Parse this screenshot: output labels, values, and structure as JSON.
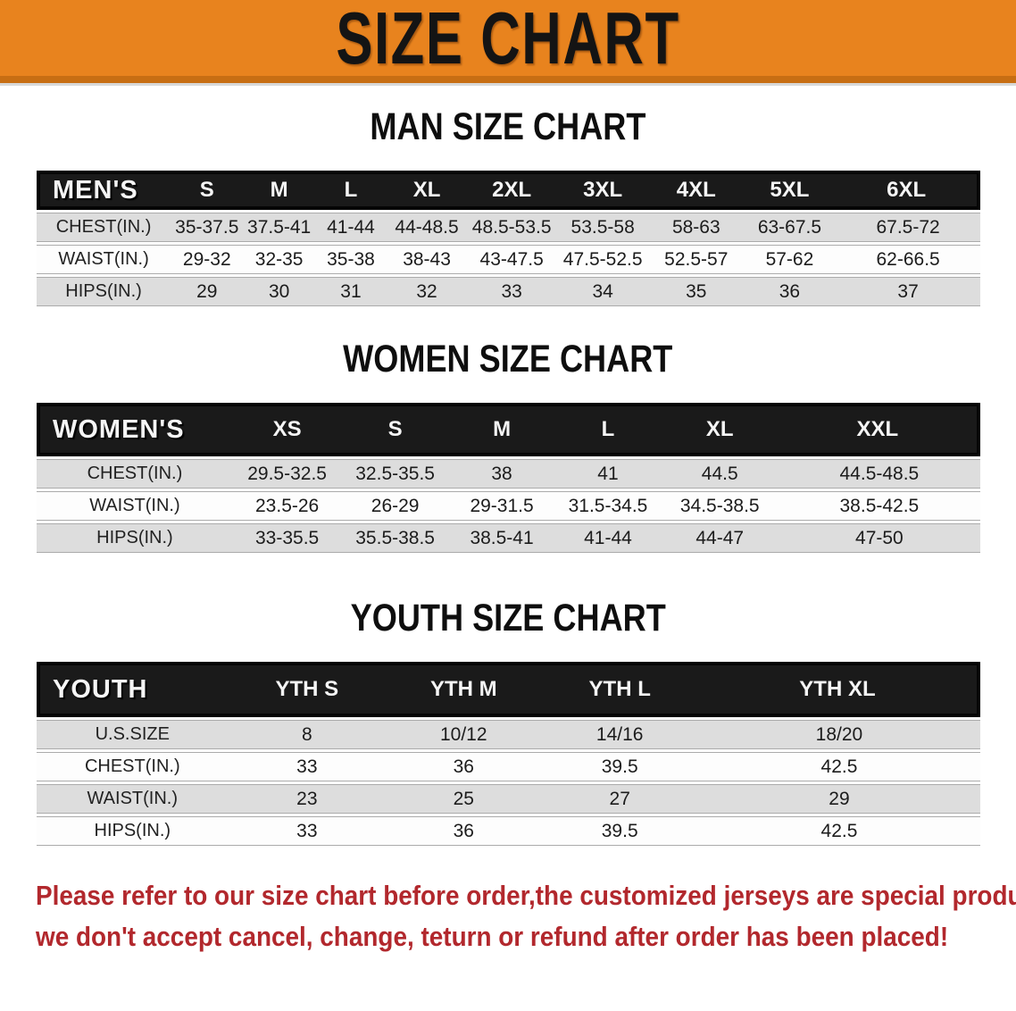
{
  "banner": {
    "title": "SIZE CHART",
    "background_color": "#E8831E"
  },
  "colors": {
    "banner_orange": "#E8831E",
    "banner_orange_dark": "#C76E13",
    "table_header_black": "#1A1A1A",
    "row_shade_gray": "#DDDDDD",
    "footer_red": "#B2282D"
  },
  "sections": [
    {
      "heading": "MAN SIZE CHART",
      "label": "MEN'S",
      "columns": [
        "S",
        "M",
        "L",
        "XL",
        "2XL",
        "3XL",
        "4XL",
        "5XL",
        "6XL"
      ],
      "rows": [
        {
          "label": "CHEST(IN.)",
          "values": [
            "35-37.5",
            "37.5-41",
            "41-44",
            "44-48.5",
            "48.5-53.5",
            "53.5-58",
            "58-63",
            "63-67.5",
            "67.5-72"
          ]
        },
        {
          "label": "WAIST(IN.)",
          "values": [
            "29-32",
            "32-35",
            "35-38",
            "38-43",
            "43-47.5",
            "47.5-52.5",
            "52.5-57",
            "57-62",
            "62-66.5"
          ]
        },
        {
          "label": "HIPS(IN.)",
          "values": [
            "29",
            "30",
            "31",
            "32",
            "33",
            "34",
            "35",
            "36",
            "37"
          ]
        }
      ]
    },
    {
      "heading": "WOMEN SIZE CHART",
      "label": "WOMEN'S",
      "columns": [
        "XS",
        "S",
        "M",
        "L",
        "XL",
        "XXL"
      ],
      "rows": [
        {
          "label": "CHEST(IN.)",
          "values": [
            "29.5-32.5",
            "32.5-35.5",
            "38",
            "41",
            "44.5",
            "44.5-48.5"
          ]
        },
        {
          "label": "WAIST(IN.)",
          "values": [
            "23.5-26",
            "26-29",
            "29-31.5",
            "31.5-34.5",
            "34.5-38.5",
            "38.5-42.5"
          ]
        },
        {
          "label": "HIPS(IN.)",
          "values": [
            "33-35.5",
            "35.5-38.5",
            "38.5-41",
            "41-44",
            "44-47",
            "47-50"
          ]
        }
      ]
    },
    {
      "heading": "YOUTH SIZE CHART",
      "label": "YOUTH",
      "columns": [
        "YTH S",
        "YTH M",
        "YTH L",
        "YTH XL"
      ],
      "rows": [
        {
          "label": "U.S.SIZE",
          "values": [
            "8",
            "10/12",
            "14/16",
            "18/20"
          ]
        },
        {
          "label": "CHEST(IN.)",
          "values": [
            "33",
            "36",
            "39.5",
            "42.5"
          ]
        },
        {
          "label": "WAIST(IN.)",
          "values": [
            "23",
            "25",
            "27",
            "29"
          ]
        },
        {
          "label": "HIPS(IN.)",
          "values": [
            "33",
            "36",
            "39.5",
            "42.5"
          ]
        }
      ]
    }
  ],
  "footer": {
    "line1": "Please refer to our size chart before order,the customized jerseys are special products,",
    "line2": "we don't accept cancel, change, teturn or refund after order has been placed!"
  }
}
